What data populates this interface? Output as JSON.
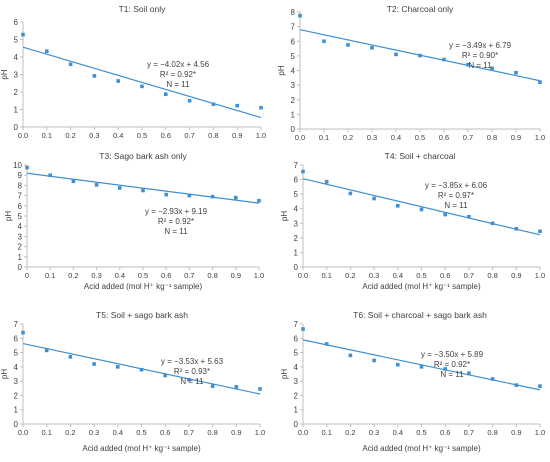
{
  "chart_data": [
    {
      "type": "scatter",
      "title": "T1: Soil only",
      "xlabel": "",
      "ylabel": "pH",
      "xlim": [
        0,
        1
      ],
      "ylim": [
        0,
        6
      ],
      "yticks": [
        0,
        1,
        2,
        3,
        4,
        5,
        6
      ],
      "xticks": [
        "0.0",
        "0.1",
        "0.2",
        "0.3",
        "0.4",
        "0.5",
        "0.6",
        "0.7",
        "0.8",
        "0.9",
        "1.0"
      ],
      "x": [
        0,
        0.1,
        0.2,
        0.3,
        0.4,
        0.5,
        0.6,
        0.7,
        0.8,
        0.9,
        1.0
      ],
      "y": [
        5.28,
        4.33,
        3.58,
        2.92,
        2.63,
        2.32,
        1.87,
        1.5,
        1.3,
        1.22,
        1.1
      ],
      "trendline": {
        "slope": -4.02,
        "intercept": 4.56
      },
      "annotation": [
        "y = −4.02x + 4.56",
        "R² = 0.92*",
        "N = 11"
      ]
    },
    {
      "type": "scatter",
      "title": "T2: Charcoal only",
      "xlabel": "",
      "ylabel": "pH",
      "xlim": [
        0,
        1
      ],
      "ylim": [
        0,
        8
      ],
      "yticks": [
        0,
        1,
        2,
        3,
        4,
        5,
        6,
        7,
        8
      ],
      "xticks": [
        "0.0",
        "0.1",
        "0.2",
        "0.3",
        "0.4",
        "0.5",
        "0.6",
        "0.7",
        "0.8",
        "0.9",
        "1.0"
      ],
      "x": [
        0,
        0.1,
        0.2,
        0.3,
        0.4,
        0.5,
        0.6,
        0.7,
        0.8,
        0.9,
        1.0
      ],
      "y": [
        7.75,
        6.0,
        5.75,
        5.55,
        5.1,
        5.02,
        4.75,
        4.4,
        4.15,
        3.85,
        3.2
      ],
      "trendline": {
        "slope": -3.49,
        "intercept": 6.79
      },
      "annotation": [
        "y = −3.49x + 6.79",
        "R² = 0.90*",
        "N = 11"
      ]
    },
    {
      "type": "scatter",
      "title": "T3: Sago bark ash only",
      "xlabel": "Acid added (mol H⁺ kg⁻¹ sample)",
      "ylabel": "pH",
      "xlim": [
        0,
        1
      ],
      "ylim": [
        0,
        10
      ],
      "yticks": [
        0,
        1,
        2,
        3,
        4,
        5,
        6,
        7,
        8,
        9,
        10
      ],
      "xticks": [
        "0",
        "0.1",
        "0.2",
        "0.3",
        "0.4",
        "0.5",
        "0.6",
        "0.7",
        "0.8",
        "0.9",
        "1.0"
      ],
      "x": [
        0,
        0.1,
        0.2,
        0.3,
        0.4,
        0.5,
        0.6,
        0.7,
        0.8,
        0.9,
        1.0
      ],
      "y": [
        9.75,
        9.0,
        8.4,
        8.05,
        7.75,
        7.5,
        7.1,
        7.0,
        6.9,
        6.8,
        6.5
      ],
      "trendline": {
        "slope": -2.93,
        "intercept": 9.19
      },
      "annotation": [
        "y = −2.93x + 9.19",
        "R² = 0.92*",
        "N = 11"
      ]
    },
    {
      "type": "scatter",
      "title": "T4: Soil + charcoal",
      "xlabel": "Acid added (mol H⁺ kg⁻¹ sample)",
      "ylabel": "pH",
      "xlim": [
        0,
        1
      ],
      "ylim": [
        0,
        7
      ],
      "yticks": [
        0,
        1,
        2,
        3,
        4,
        5,
        6,
        7
      ],
      "xticks": [
        "0.0",
        "0.1",
        "0.2",
        "0.3",
        "0.4",
        "0.5",
        "0.6",
        "0.7",
        "0.8",
        "0.9",
        "1.0"
      ],
      "x": [
        0,
        0.1,
        0.2,
        0.3,
        0.4,
        0.5,
        0.6,
        0.7,
        0.8,
        0.9,
        1.0
      ],
      "y": [
        6.55,
        5.85,
        5.05,
        4.7,
        4.2,
        3.95,
        3.6,
        3.45,
        3.0,
        2.62,
        2.45
      ],
      "trendline": {
        "slope": -3.85,
        "intercept": 6.06
      },
      "annotation": [
        "y = −3.85x + 6.06",
        "R² = 0.97*",
        "N = 11"
      ]
    },
    {
      "type": "scatter",
      "title": "T5: Soil + sago bark ash",
      "xlabel": "Acid added (mol H⁺ kg⁻¹ sample)",
      "ylabel": "pH",
      "xlim": [
        0,
        1
      ],
      "ylim": [
        0,
        7
      ],
      "yticks": [
        0,
        1,
        2,
        3,
        4,
        5,
        6,
        7
      ],
      "xticks": [
        "0.0",
        "0.1",
        "0.2",
        "0.3",
        "0.4",
        "0.5",
        "0.6",
        "0.7",
        "0.8",
        "0.9",
        "1.0"
      ],
      "x": [
        0,
        0.1,
        0.2,
        0.3,
        0.4,
        0.5,
        0.6,
        0.7,
        0.8,
        0.9,
        1.0
      ],
      "y": [
        6.4,
        5.15,
        4.7,
        4.2,
        4.0,
        3.8,
        3.4,
        3.1,
        2.65,
        2.6,
        2.45
      ],
      "trendline": {
        "slope": -3.53,
        "intercept": 5.63
      },
      "annotation": [
        "y = −3.53x + 5.63",
        "R² = 0.93*",
        "N = 11"
      ]
    },
    {
      "type": "scatter",
      "title": "T6: Soil + charcoal + sago bark ash",
      "xlabel": "Acid added (mol H⁺ kg⁻¹ sample)",
      "ylabel": "pH",
      "xlim": [
        0,
        1
      ],
      "ylim": [
        0,
        7
      ],
      "yticks": [
        0,
        1,
        2,
        3,
        4,
        5,
        6,
        7
      ],
      "xticks": [
        "0.0",
        "0.1",
        "0.2",
        "0.3",
        "0.4",
        "0.5",
        "0.6",
        "0.7",
        "0.8",
        "0.9",
        "1.0"
      ],
      "x": [
        0,
        0.1,
        0.2,
        0.3,
        0.4,
        0.5,
        0.6,
        0.7,
        0.8,
        0.9,
        1.0
      ],
      "y": [
        6.65,
        5.6,
        4.8,
        4.45,
        4.15,
        4.0,
        3.85,
        3.55,
        3.15,
        2.72,
        2.65
      ],
      "trendline": {
        "slope": -3.5,
        "intercept": 5.89
      },
      "annotation": [
        "y = −3.50x + 5.89",
        "R² = 0.92*",
        "N = 11"
      ]
    }
  ],
  "style": {
    "marker_color": "#3f8fd2",
    "line_color": "#3f8fd2",
    "axis_color": "#bfbfbf",
    "text_color": "#404040"
  }
}
